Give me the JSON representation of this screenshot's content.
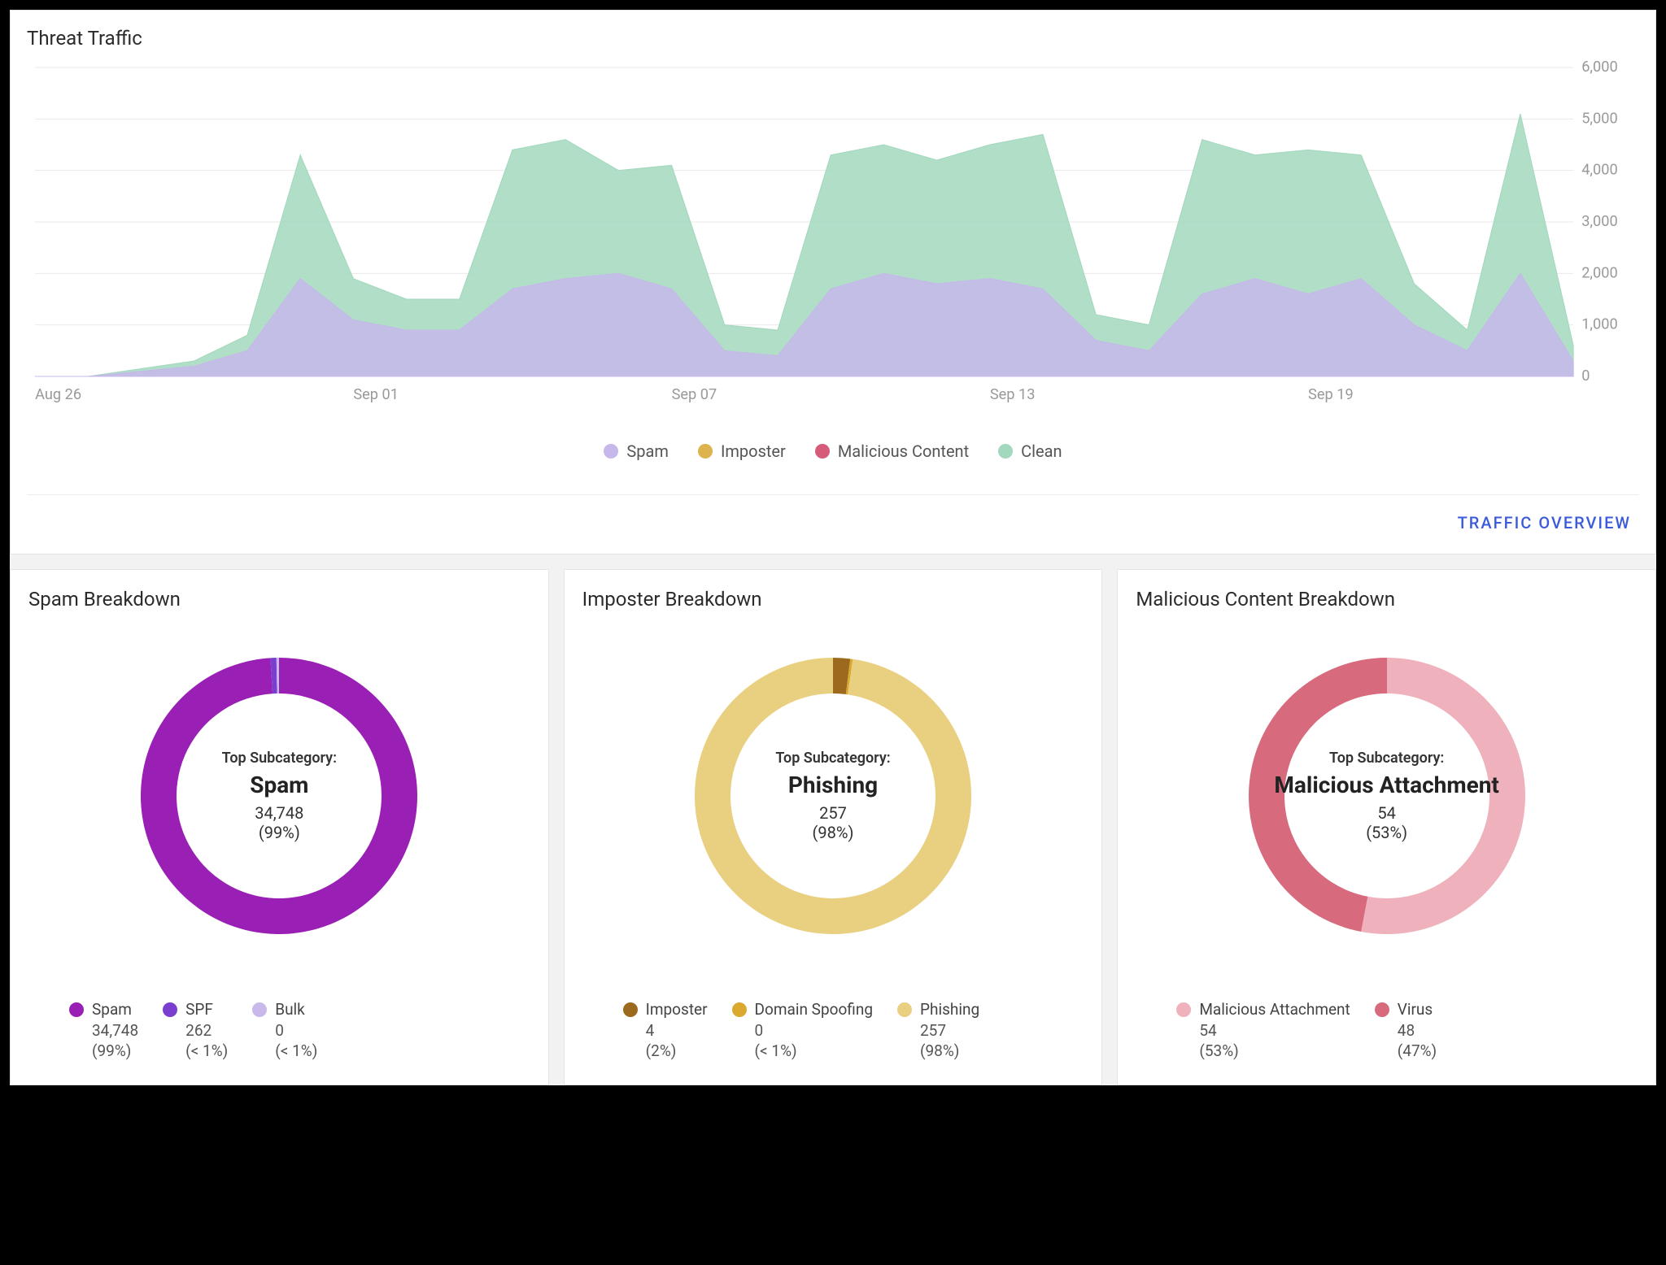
{
  "page_background": "#f2f2f2",
  "card_background": "#ffffff",
  "text_color": "#333333",
  "muted_text_color": "#999999",
  "grid_color": "#eaeaea",
  "overview_link": {
    "label": "TRAFFIC OVERVIEW",
    "color": "#3b5bdb"
  },
  "traffic_chart": {
    "title": "Threat Traffic",
    "type": "area",
    "y_axis": {
      "min": 0,
      "max": 6000,
      "step": 1000,
      "position": "right",
      "ticks": [
        "0",
        "1,000",
        "2,000",
        "3,000",
        "4,000",
        "5,000",
        "6,000"
      ]
    },
    "x_axis": {
      "ticks": [
        "Aug 26",
        "Sep 01",
        "Sep 07",
        "Sep 13",
        "Sep 19"
      ],
      "tick_positions": [
        0,
        6,
        12,
        18,
        24
      ],
      "point_count": 30
    },
    "legend": [
      {
        "label": "Spam",
        "color": "#c6b8ea"
      },
      {
        "label": "Imposter",
        "color": "#dcb34c"
      },
      {
        "label": "Malicious Content",
        "color": "#d65a7a"
      },
      {
        "label": "Clean",
        "color": "#a2d8bd"
      }
    ],
    "series": {
      "spam": {
        "color": "#c6b8ea",
        "fill_opacity": 0.85,
        "values": [
          0,
          0,
          100,
          200,
          500,
          1900,
          1100,
          900,
          900,
          1700,
          1900,
          2000,
          1700,
          500,
          400,
          1700,
          2000,
          1800,
          1900,
          1700,
          700,
          500,
          1600,
          1900,
          1600,
          1900,
          1000,
          500,
          2000,
          300
        ]
      },
      "clean": {
        "color": "#a2d8bd",
        "fill_opacity": 0.85,
        "values": [
          0,
          0,
          150,
          300,
          800,
          4300,
          1900,
          1500,
          1500,
          4400,
          4600,
          4000,
          4100,
          1000,
          900,
          4300,
          4500,
          4200,
          4500,
          4700,
          1200,
          1000,
          4600,
          4300,
          4400,
          4300,
          1800,
          900,
          5100,
          600
        ]
      }
    },
    "grid": true,
    "title_fontsize": 24,
    "tick_fontsize": 18
  },
  "breakdowns": [
    {
      "title": "Spam Breakdown",
      "type": "donut",
      "center_label": "Top Subcategory:",
      "top": {
        "name": "Spam",
        "count": "34,748",
        "percent": "(99%)"
      },
      "ring_thickness": 44,
      "slices": [
        {
          "label": "Spam",
          "value": 34748,
          "percent": 99,
          "percent_label": "(99%)",
          "count_label": "34,748",
          "color": "#9a1fb5"
        },
        {
          "label": "SPF",
          "value": 262,
          "percent": 0.7,
          "percent_label": "(< 1%)",
          "count_label": "262",
          "color": "#7a3fcf"
        },
        {
          "label": "Bulk",
          "value": 0,
          "percent": 0.3,
          "percent_label": "(< 1%)",
          "count_label": "0",
          "color": "#c9b8ea"
        }
      ]
    },
    {
      "title": "Imposter Breakdown",
      "type": "donut",
      "center_label": "Top Subcategory:",
      "top": {
        "name": "Phishing",
        "count": "257",
        "percent": "(98%)"
      },
      "ring_thickness": 44,
      "slices": [
        {
          "label": "Imposter",
          "value": 4,
          "percent": 2,
          "percent_label": "(2%)",
          "count_label": "4",
          "color": "#9c6a1f"
        },
        {
          "label": "Domain Spoofing",
          "value": 0,
          "percent": 0.3,
          "percent_label": "(< 1%)",
          "count_label": "0",
          "color": "#dba830"
        },
        {
          "label": "Phishing",
          "value": 257,
          "percent": 97.7,
          "percent_label": "(98%)",
          "count_label": "257",
          "color": "#e9cf80"
        }
      ]
    },
    {
      "title": "Malicious Content Breakdown",
      "type": "donut",
      "center_label": "Top Subcategory:",
      "top": {
        "name": "Malicious Attachment",
        "count": "54",
        "percent": "(53%)"
      },
      "ring_thickness": 44,
      "slices": [
        {
          "label": "Malicious Attachment",
          "value": 54,
          "percent": 53,
          "percent_label": "(53%)",
          "count_label": "54",
          "color": "#efb1bb"
        },
        {
          "label": "Virus",
          "value": 48,
          "percent": 47,
          "percent_label": "(47%)",
          "count_label": "48",
          "color": "#d86a7e"
        }
      ]
    }
  ]
}
